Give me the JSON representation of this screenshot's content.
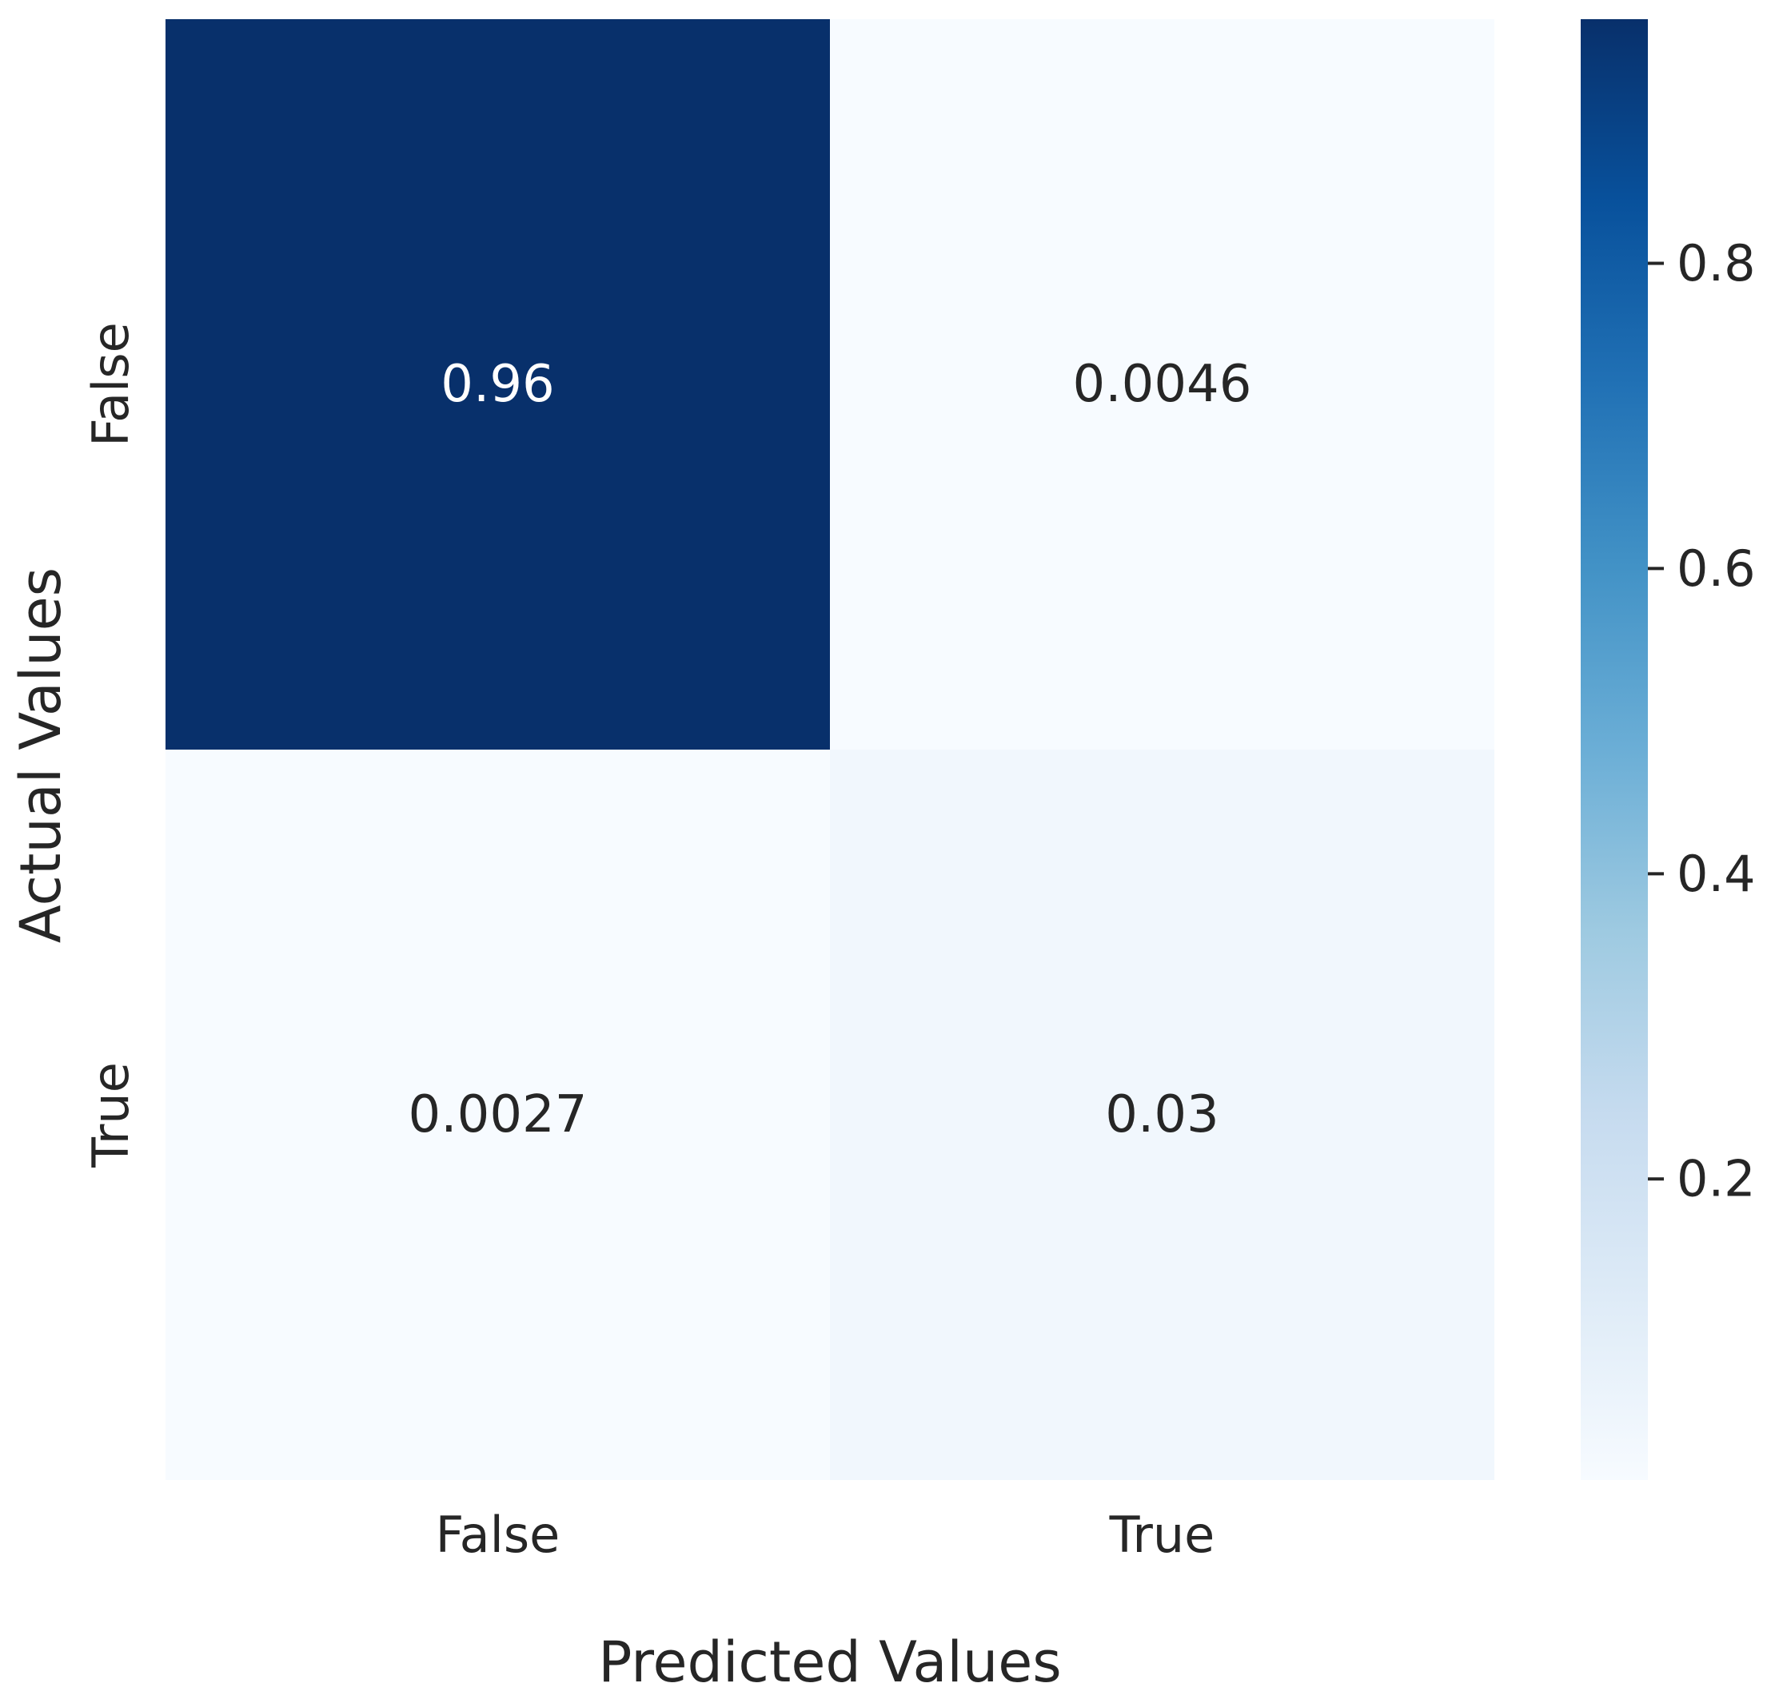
{
  "chart_data": {
    "type": "heatmap",
    "title": "",
    "xlabel": "Predicted Values",
    "ylabel": "Actual Values",
    "x_categories": [
      "False",
      "True"
    ],
    "y_categories": [
      "False",
      "True"
    ],
    "values": [
      [
        0.96,
        0.0046
      ],
      [
        0.0027,
        0.03
      ]
    ],
    "annotations": [
      [
        "0.96",
        "0.0046"
      ],
      [
        "0.0027",
        "0.03"
      ]
    ],
    "colormap": "Blues",
    "colorbar": {
      "range": [
        0.0027,
        0.96
      ],
      "ticks": [
        0.2,
        0.4,
        0.6,
        0.8
      ],
      "tick_labels": [
        "0.2",
        "0.4",
        "0.6",
        "0.8"
      ]
    },
    "colors": {
      "high": "#08306b",
      "low": "#f7fbff",
      "annotation_dark_bg": "#ffffff",
      "annotation_light_bg": "#262626",
      "text": "#262626"
    },
    "grid": false
  }
}
